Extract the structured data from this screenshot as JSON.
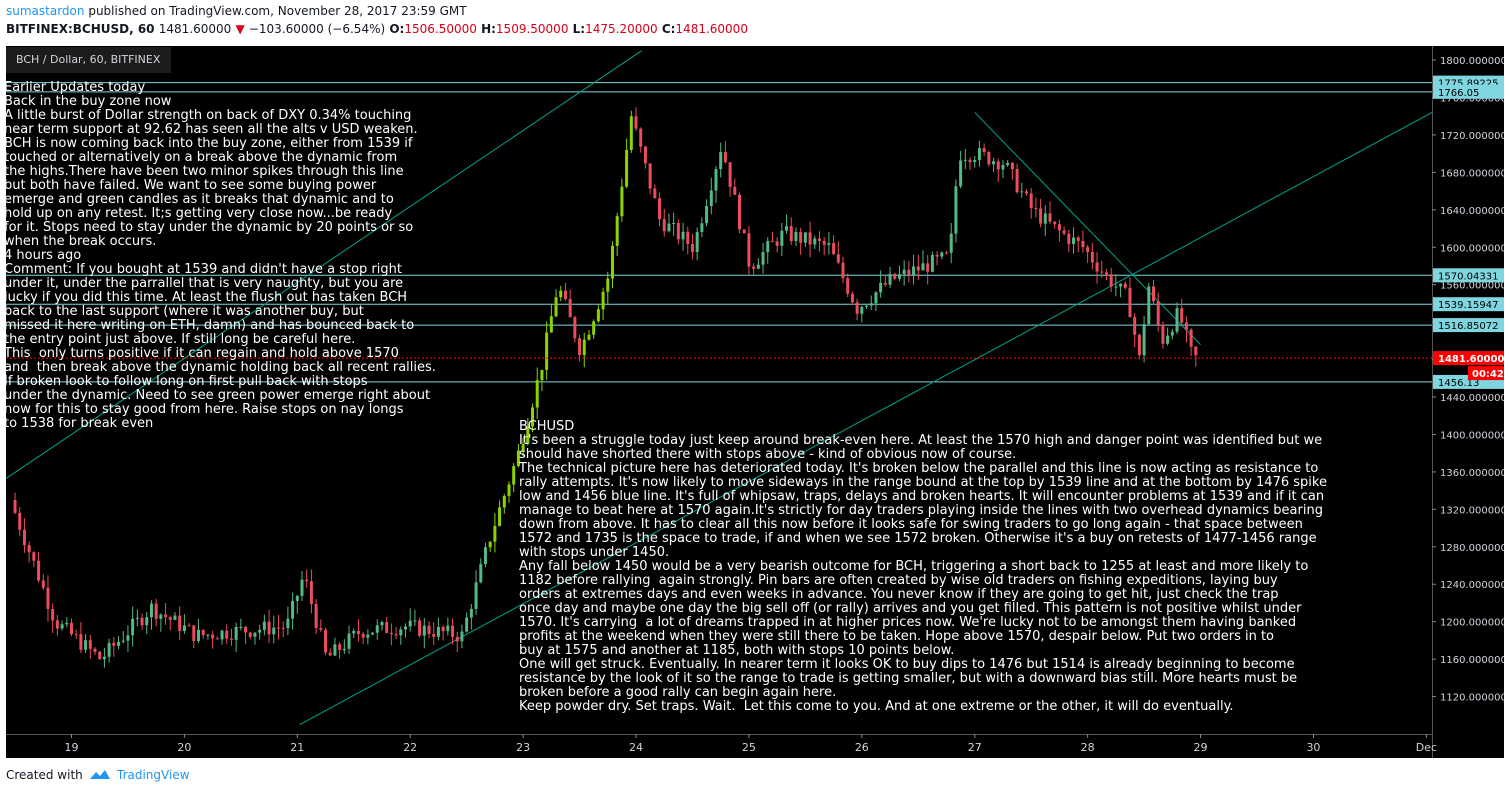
{
  "header": {
    "author": "sumastardon",
    "published_text": "published on TradingView.com, November 28, 2017 23:59 GMT",
    "symbol_line": "BITFINEX:BCHUSD, 60",
    "last": "1481.60000",
    "change": "−103.60000 (−6.54%)",
    "o_label": "O:",
    "o_value": "1506.50000",
    "h_label": "H:",
    "h_value": "1509.50000",
    "l_label": "L:",
    "l_value": "1475.20000",
    "c_label": "C:",
    "c_value": "1481.60000"
  },
  "legend_title": "BCH / Dollar, 60, BITFINEX",
  "footer": {
    "created_with": "Created with",
    "brand": "TradingView"
  },
  "colors": {
    "background": "#000000",
    "up_candle": "#53b987",
    "up_candle_bright": "#8bd400",
    "down_candle": "#eb4d5c",
    "trendline": "#00a38c",
    "horizontal_line": "#7fd6e0",
    "last_price": "#ff0000",
    "axis_label_bg": "#7fd6e0"
  },
  "notes": {
    "left": "Earlier Updates today\nBack in the buy zone now\nA little burst of Dollar strength on back of DXY 0.34% touching\nnear term support at 92.62 has seen all the alts v USD weaken.\nBCH is now coming back into the buy zone, either from 1539 if\ntouched or alternatively on a break above the dynamic from\nthe highs.There have been two minor spikes through this line\nbut both have failed. We want to see some buying power\nemerge and green candles as it breaks that dynamic and to\nhold up on any retest. It;s getting very close now...be ready\nfor it. Stops need to stay under the dynamic by 20 points or so\nwhen the break occurs.\n4 hours ago\nComment: If you bought at 1539 and didn't have a stop right\nunder it, under the parrallel that is very naughty, but you are\nlucky if you did this time. At least the flush out has taken BCH\nback to the last support (where it was another buy, but\nmissed it here writing on ETH, damn) and has bounced back to\nthe entry point just above. If still long be careful here.\nThis  only turns positive if it can regain and hold above 1570\nand  then break above the dynamic holding back all recent rallies.\nIf broken look to follow long on first pull back with stops\nunder the dynamic. Need to see green power emerge right about\nnow for this to stay good from here. Raise stops on nay longs\nto 1538 for break even",
    "right": "BCHUSD\nIt's been a struggle today just keep around break-even here. At least the 1570 high and danger point was identified but we\nshould have shorted there with stops above - kind of obvious now of course.\nThe technical picture here has deteriorated today. It's broken below the parallel and this line is now acting as resistance to\nrally attempts. It's now likely to move sideways in the range bound at the top by 1539 line and at the bottom by 1476 spike\nlow and 1456 blue line. It's full of whipsaw, traps, delays and broken hearts. It will encounter problems at 1539 and if it can\nmanage to beat here at 1570 again.It's strictly for day traders playing inside the lines with two overhead dynamics bearing\ndown from above. It has to clear all this now before it looks safe for swing traders to go long again - that space between\n1572 and 1735 is the space to trade, if and when we see 1572 broken. Otherwise it's a buy on retests of 1477-1456 range\nwith stops under 1450.\nAny fall below 1450 would be a very bearish outcome for BCH, triggering a short back to 1255 at least and more likely to\n1182 before rallying  again strongly. Pin bars are often created by wise old traders on fishing expeditions, laying buy\norders at extremes days and even weeks in advance. You never know if they are going to get hit, just check the trap\nonce day and maybe one day the big sell off (or rally) arrives and you get filled. This pattern is not positive whilst under\n1570. It's carrying  a lot of dreams trapped in at higher prices now. We're lucky not to be amongst them having banked\nprofits at the weekend when they were still there to be taken. Hope above 1570, despair below. Put two orders in to\nbuy at 1575 and another at 1185, both with stops 10 points below.\nOne will get struck. Eventually. In nearer term it looks OK to buy dips to 1476 but 1514 is already beginning to become\nresistance by the look of it so the range to trade is getting smaller, but with a downward bias still. More hearts must be\nbroken before a good rally can begin again here.\nKeep powder dry. Set traps. Wait.  Let this come to you. And at one extreme or the other, it will do eventually."
  },
  "chart_data": {
    "type": "candlestick",
    "symbol": "BCH / Dollar, 60, BITFINEX",
    "timeframe": "60",
    "x_ticks": [
      "19",
      "20",
      "21",
      "22",
      "23",
      "24",
      "25",
      "26",
      "27",
      "28",
      "29",
      "30",
      "Dec"
    ],
    "y_ticks": [
      "1120.000000",
      "1160.000000",
      "1200.000000",
      "1240.000000",
      "1280.000000",
      "1320.000000",
      "1360.000000",
      "1400.000000",
      "1440.000000",
      "1480.000000",
      "1520.000000",
      "1560.000000",
      "1600.000000",
      "1640.000000",
      "1680.000000",
      "1720.000000",
      "1760.000000",
      "1800.000000"
    ],
    "ylim": [
      1080,
      1815
    ],
    "xlim_days": [
      18.42,
      31.05
    ],
    "horizontal_lines": [
      {
        "value": 1775.89225,
        "label": "1775.89225"
      },
      {
        "value": 1766.05,
        "label": "1766.05"
      },
      {
        "value": 1570.04331,
        "label": "1570.04331"
      },
      {
        "value": 1539.15947,
        "label": "1539.15947"
      },
      {
        "value": 1516.85072,
        "label": "1516.85072"
      },
      {
        "value": 1456.13,
        "label": "1456.13"
      }
    ],
    "last_price": {
      "value": 1481.6,
      "label": "1481.60000",
      "countdown": "00:42"
    },
    "trendlines": [
      {
        "from": [
          18.42,
          1353
        ],
        "to": [
          24.05,
          1810
        ]
      },
      {
        "from": [
          21.02,
          1090
        ],
        "to": [
          31.05,
          1744
        ]
      },
      {
        "from": [
          27.0,
          1744
        ],
        "to": [
          29.0,
          1496
        ]
      }
    ],
    "key_points": [
      {
        "x": 18.5,
        "y": 1330
      },
      {
        "x": 18.9,
        "y": 1200
      },
      {
        "x": 19.3,
        "y": 1160
      },
      {
        "x": 19.75,
        "y": 1215
      },
      {
        "x": 20.15,
        "y": 1185
      },
      {
        "x": 20.5,
        "y": 1190
      },
      {
        "x": 20.95,
        "y": 1195
      },
      {
        "x": 21.1,
        "y": 1250
      },
      {
        "x": 21.3,
        "y": 1160
      },
      {
        "x": 21.6,
        "y": 1190
      },
      {
        "x": 22.0,
        "y": 1195
      },
      {
        "x": 22.5,
        "y": 1185
      },
      {
        "x": 22.75,
        "y": 1290
      },
      {
        "x": 23.0,
        "y": 1380
      },
      {
        "x": 23.2,
        "y": 1470
      },
      {
        "x": 23.35,
        "y": 1560
      },
      {
        "x": 23.55,
        "y": 1490
      },
      {
        "x": 23.8,
        "y": 1570
      },
      {
        "x": 24.0,
        "y": 1740
      },
      {
        "x": 24.25,
        "y": 1630
      },
      {
        "x": 24.55,
        "y": 1600
      },
      {
        "x": 24.8,
        "y": 1710
      },
      {
        "x": 25.05,
        "y": 1580
      },
      {
        "x": 25.35,
        "y": 1615
      },
      {
        "x": 25.75,
        "y": 1600
      },
      {
        "x": 26.0,
        "y": 1535
      },
      {
        "x": 26.3,
        "y": 1565
      },
      {
        "x": 26.6,
        "y": 1580
      },
      {
        "x": 26.82,
        "y": 1590
      },
      {
        "x": 26.9,
        "y": 1700
      },
      {
        "x": 27.05,
        "y": 1700
      },
      {
        "x": 27.3,
        "y": 1690
      },
      {
        "x": 27.55,
        "y": 1640
      },
      {
        "x": 27.75,
        "y": 1620
      },
      {
        "x": 28.0,
        "y": 1600
      },
      {
        "x": 28.2,
        "y": 1570
      },
      {
        "x": 28.4,
        "y": 1545
      },
      {
        "x": 28.5,
        "y": 1480
      },
      {
        "x": 28.58,
        "y": 1560
      },
      {
        "x": 28.7,
        "y": 1500
      },
      {
        "x": 28.85,
        "y": 1530
      },
      {
        "x": 28.97,
        "y": 1481.6
      }
    ]
  }
}
